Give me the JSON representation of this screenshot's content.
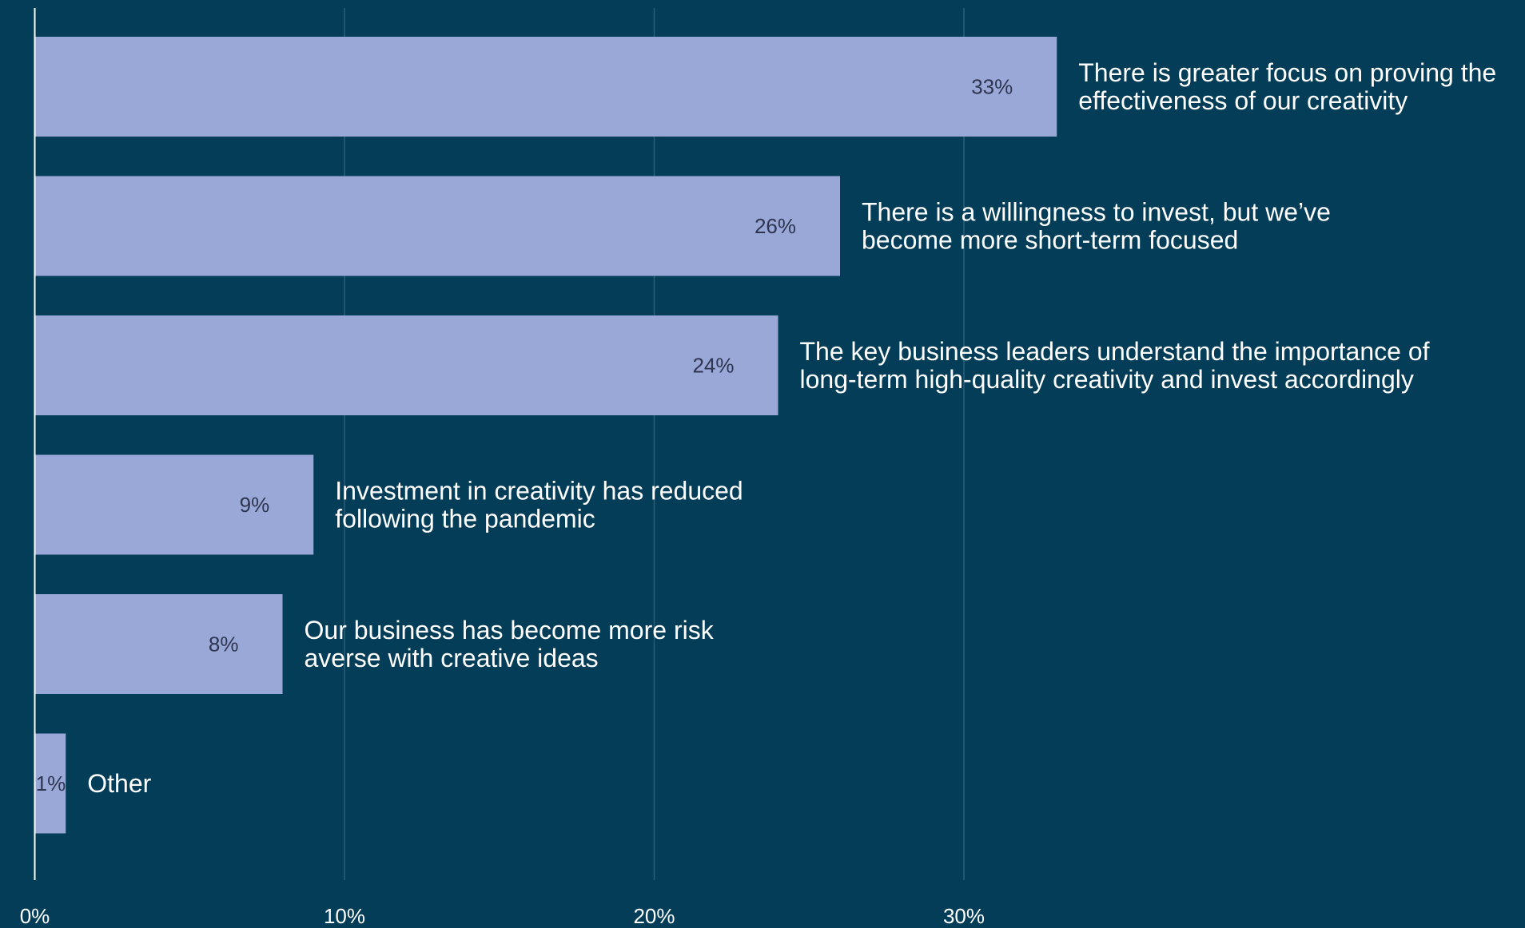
{
  "chart_data": {
    "type": "bar",
    "orientation": "horizontal",
    "categories": [
      [
        "There is greater focus on proving the",
        "effectiveness of our creativity"
      ],
      [
        "There is a willingness to invest, but we’ve",
        "become more short-term focused"
      ],
      [
        "The key business leaders understand the importance of",
        "long-term high-quality creativity and invest accordingly"
      ],
      [
        "Investment in creativity has reduced",
        "following the pandemic"
      ],
      [
        "Our business has become more risk",
        "averse with creative ideas"
      ],
      [
        "Other"
      ]
    ],
    "values": [
      33,
      26,
      24,
      9,
      8,
      1
    ],
    "value_labels": [
      "33%",
      "26%",
      "24%",
      "9%",
      "8%",
      "1%"
    ],
    "xlim": [
      0,
      47
    ],
    "x_ticks": [
      0,
      10,
      20,
      30
    ],
    "x_tick_labels": [
      "0%",
      "10%",
      "20%",
      "30%"
    ],
    "grid": true,
    "title": "",
    "xlabel": "",
    "ylabel": ""
  },
  "colors": {
    "background": "#033d57",
    "bar": "#9aa8d8",
    "bar_value_text": "#2e3550",
    "category_text": "#ffffff",
    "tick_text": "#ffffff",
    "gridline": "#2a5f78",
    "axis_line": "#ffffff"
  }
}
